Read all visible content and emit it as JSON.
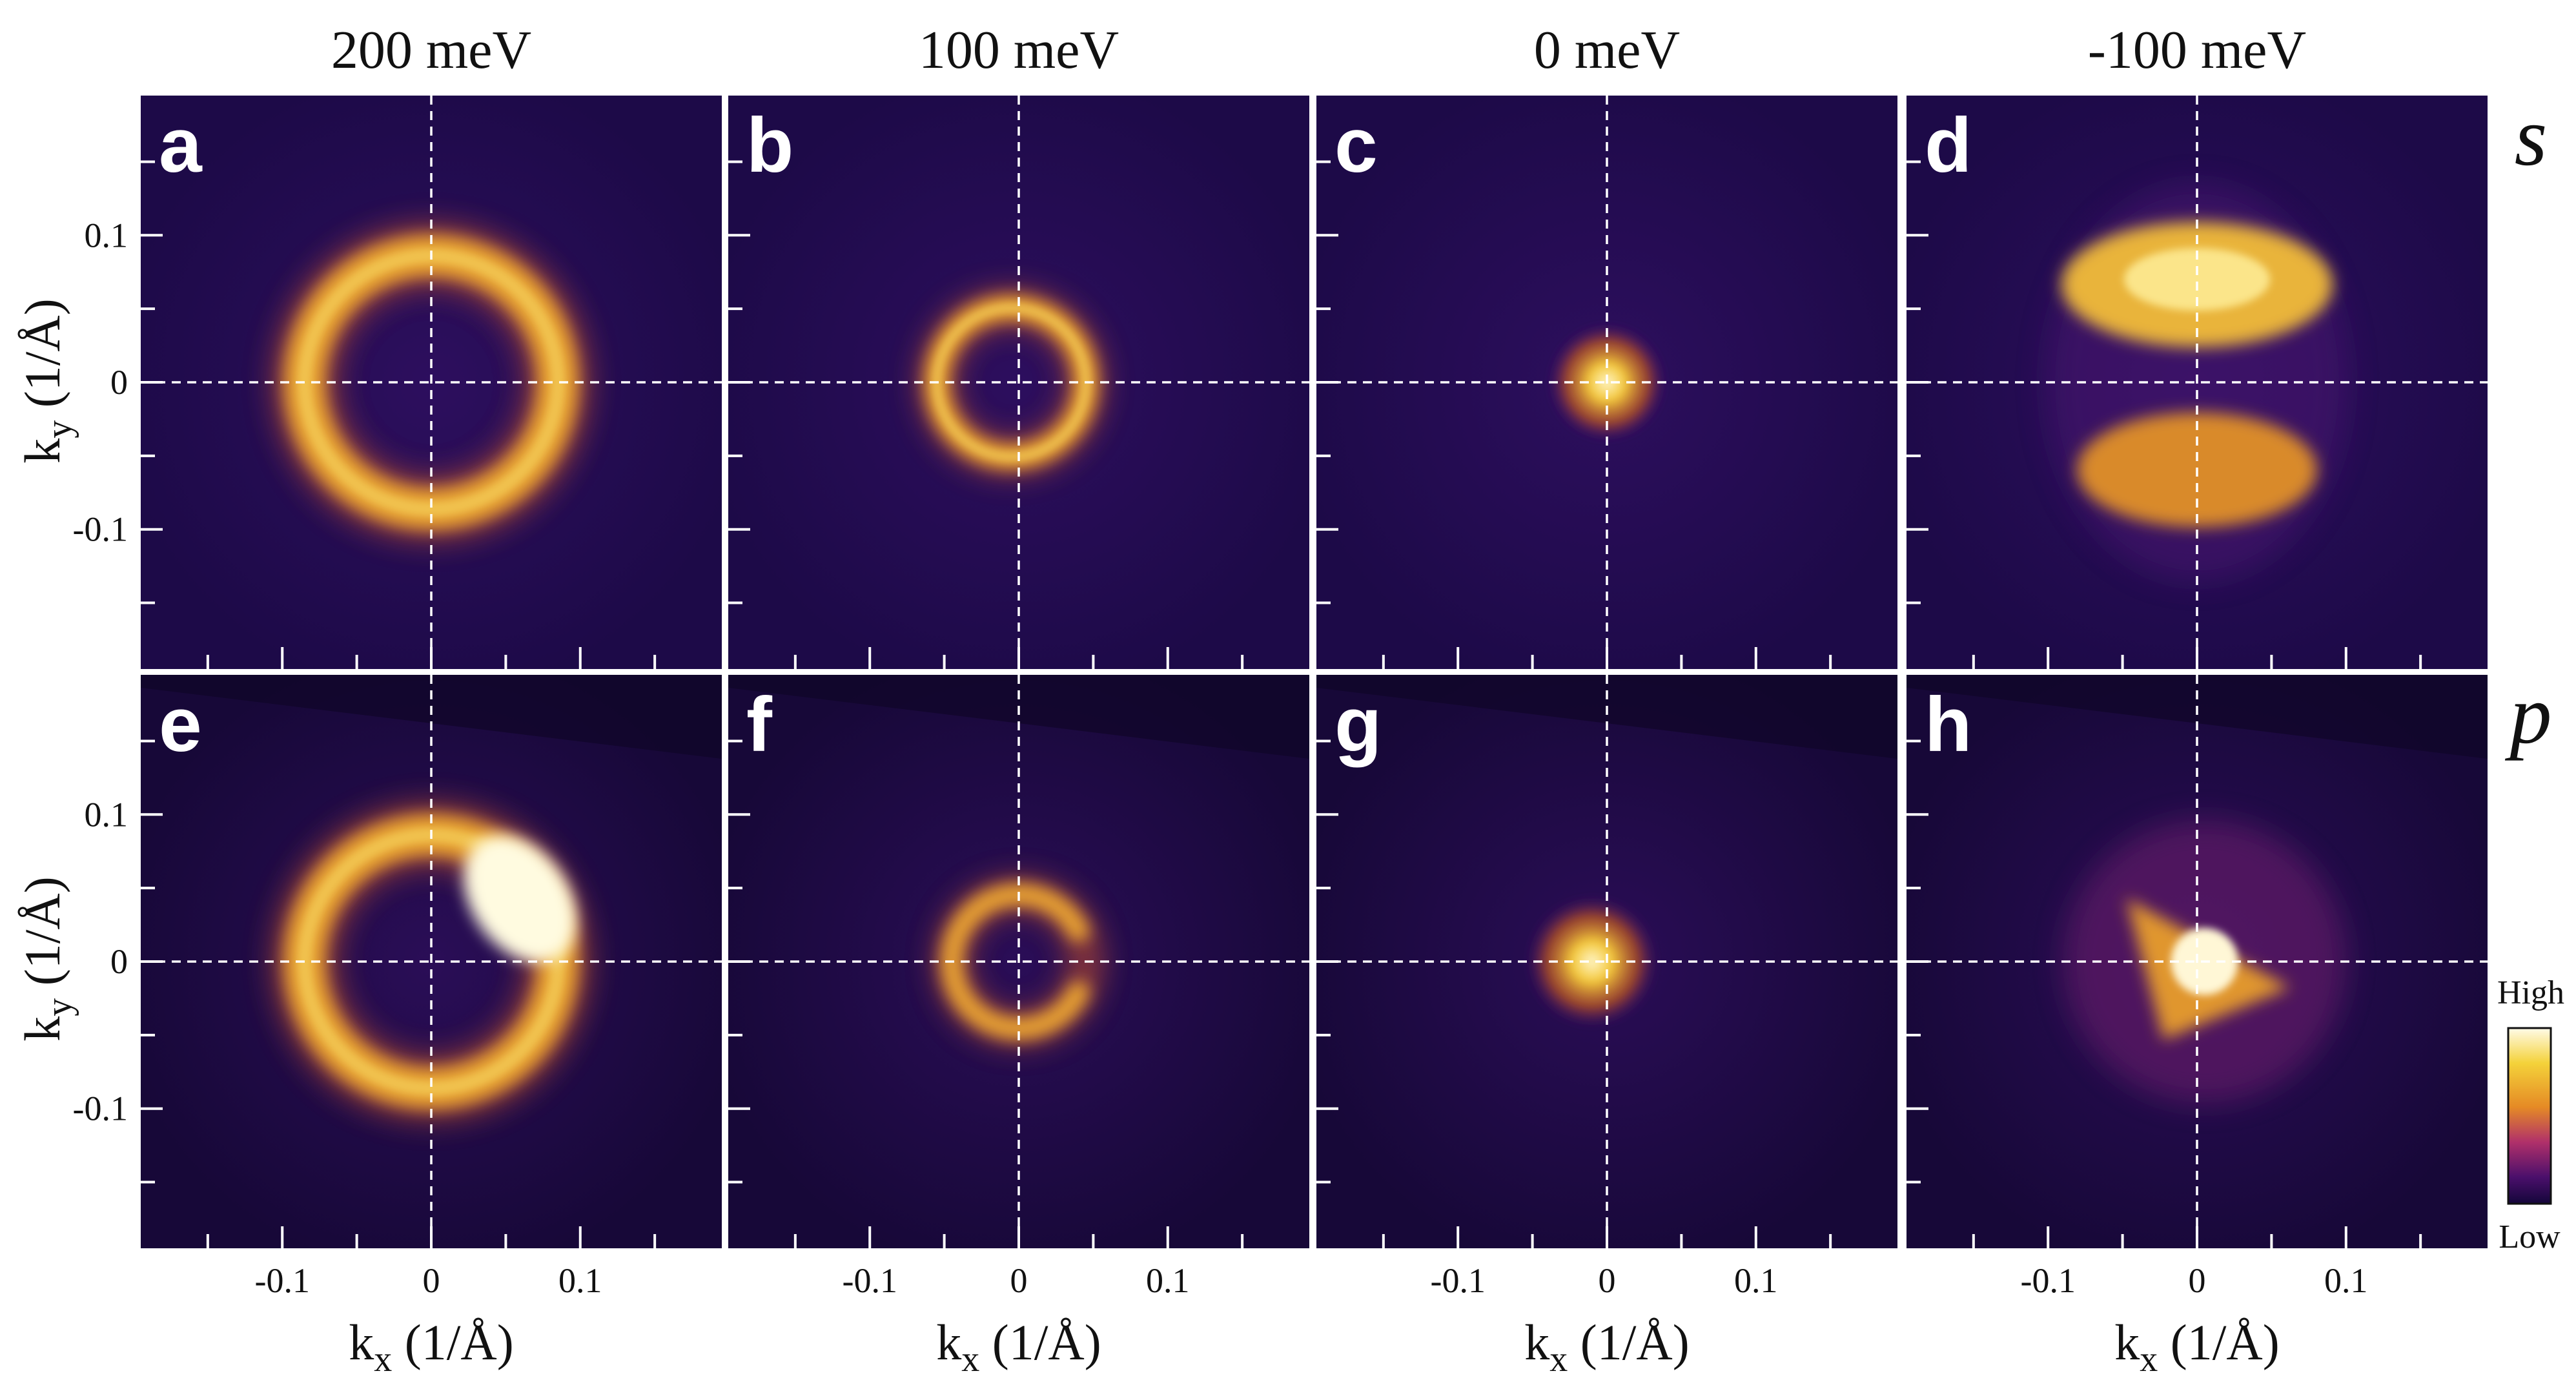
{
  "chart_data": {
    "type": "heatmap",
    "description_units": "ARPES constant-energy maps",
    "energies": [
      "200 meV",
      "100 meV",
      "0 meV",
      "-100 meV"
    ],
    "polarizations": [
      "s",
      "p"
    ],
    "xlabel_main": "k",
    "xlabel_sub": "x",
    "xlabel_unit": " (1/Å)",
    "ylabel_main": "k",
    "ylabel_sub": "y",
    "ylabel_unit": " (1/Å)",
    "xlim": [
      -0.195,
      0.195
    ],
    "ylim": [
      -0.195,
      0.195
    ],
    "x_ticks": [
      -0.1,
      0,
      0.1
    ],
    "x_tick_labels": [
      "-0.1",
      "0",
      "0.1"
    ],
    "y_ticks": [
      0.1,
      0,
      -0.1
    ],
    "y_tick_labels": [
      "0.1",
      "0",
      "-0.1"
    ],
    "minor_tick_step": 0.05,
    "guide_lines": {
      "kx": 0,
      "ky": 0
    },
    "colorbar": {
      "high_label": "High",
      "low_label": "Low",
      "colors": [
        "#ffffff",
        "#f4d23a",
        "#e58a25",
        "#b0306a",
        "#4a0f6b",
        "#14063a"
      ]
    },
    "panels": [
      {
        "letter": "a",
        "pol": "s",
        "energy": "200 meV",
        "feature": "ring",
        "center": [
          0.0,
          0.0
        ],
        "radius": 0.085,
        "intensity": 0.85
      },
      {
        "letter": "b",
        "pol": "s",
        "energy": "100 meV",
        "feature": "ring",
        "center": [
          -0.005,
          0.0
        ],
        "radius": 0.05,
        "intensity": 0.8
      },
      {
        "letter": "c",
        "pol": "s",
        "energy": "0 meV",
        "feature": "spot",
        "center": [
          0.0,
          0.0
        ],
        "radius": 0.018,
        "intensity": 0.9
      },
      {
        "letter": "d",
        "pol": "s",
        "energy": "-100 meV",
        "feature": "split-lobes",
        "center": [
          0.0,
          0.0
        ],
        "radius": 0.07,
        "intensity": 0.85
      },
      {
        "letter": "e",
        "pol": "p",
        "energy": "200 meV",
        "feature": "ring-bright-right",
        "center": [
          0.0,
          0.0
        ],
        "radius": 0.085,
        "intensity": 1.0
      },
      {
        "letter": "f",
        "pol": "p",
        "energy": "100 meV",
        "feature": "open-ring",
        "center": [
          0.0,
          0.0
        ],
        "radius": 0.045,
        "intensity": 0.8
      },
      {
        "letter": "g",
        "pol": "p",
        "energy": "0 meV",
        "feature": "spot",
        "center": [
          -0.01,
          0.0
        ],
        "radius": 0.02,
        "intensity": 0.9
      },
      {
        "letter": "h",
        "pol": "p",
        "energy": "-100 meV",
        "feature": "triangle-spot",
        "center": [
          0.005,
          0.0
        ],
        "radius": 0.05,
        "intensity": 1.0
      }
    ]
  }
}
